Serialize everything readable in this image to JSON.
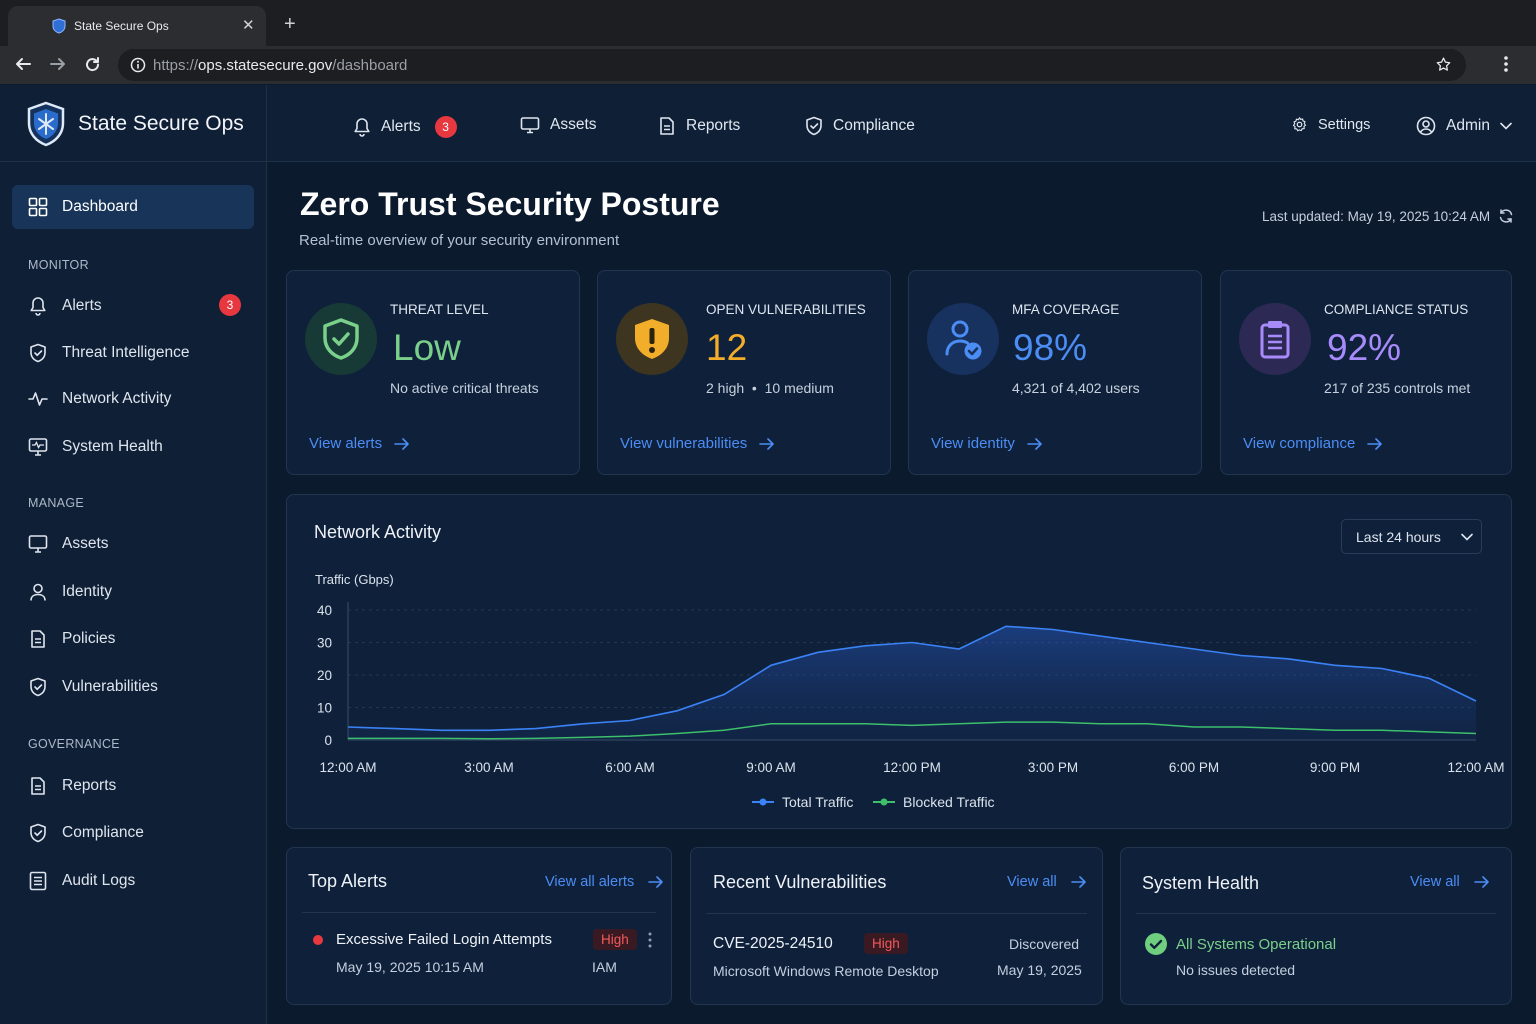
{
  "browser": {
    "tab_title": "State Secure Ops",
    "url_prefix": "https://",
    "url_host": "ops.statesecure.gov",
    "url_path": "/dashboard"
  },
  "app": {
    "name": "State Secure Ops",
    "nav": [
      {
        "label": "Alerts",
        "icon": "bell-icon",
        "badge": "3"
      },
      {
        "label": "Assets",
        "icon": "monitor-icon"
      },
      {
        "label": "Reports",
        "icon": "document-icon"
      },
      {
        "label": "Compliance",
        "icon": "shield-check-icon"
      }
    ],
    "settings_label": "Settings",
    "user_label": "Admin"
  },
  "sidebar": {
    "dashboard_label": "Dashboard",
    "sections": [
      {
        "title": "MONITOR",
        "items": [
          {
            "label": "Alerts",
            "icon": "bell-icon",
            "badge": "3"
          },
          {
            "label": "Threat Intelligence",
            "icon": "shield-check-icon"
          },
          {
            "label": "Network Activity",
            "icon": "activity-icon"
          },
          {
            "label": "System Health",
            "icon": "monitor-pulse-icon"
          }
        ]
      },
      {
        "title": "MANAGE",
        "items": [
          {
            "label": "Assets",
            "icon": "monitor-icon"
          },
          {
            "label": "Identity",
            "icon": "user-icon"
          },
          {
            "label": "Policies",
            "icon": "document-icon"
          },
          {
            "label": "Vulnerabilities",
            "icon": "shield-check-icon"
          }
        ]
      },
      {
        "title": "GOVERNANCE",
        "items": [
          {
            "label": "Reports",
            "icon": "document-icon"
          },
          {
            "label": "Compliance",
            "icon": "shield-check-icon"
          },
          {
            "label": "Audit Logs",
            "icon": "list-icon"
          }
        ]
      }
    ]
  },
  "page": {
    "title": "Zero Trust Security Posture",
    "subtitle": "Real-time overview of your security environment",
    "last_updated": "Last updated: May 19, 2025 10:24 AM"
  },
  "cards": [
    {
      "label": "THREAT LEVEL",
      "value": "Low",
      "sub": "No active critical threats",
      "link": "View alerts",
      "color": "#7ad08a"
    },
    {
      "label": "OPEN VULNERABILITIES",
      "value": "12",
      "sub": "2 high  •  10 medium",
      "link": "View vulnerabilities",
      "color": "#f2ad2a"
    },
    {
      "label": "MFA COVERAGE",
      "value": "98%",
      "sub": "4,321 of 4,402 users",
      "link": "View identity",
      "color": "#4c8df5"
    },
    {
      "label": "COMPLIANCE STATUS",
      "value": "92%",
      "sub": "217 of 235 controls met",
      "link": "View compliance",
      "color": "#a78bfa"
    }
  ],
  "network": {
    "title": "Network Activity",
    "range": "Last 24 hours"
  },
  "chart_data": {
    "type": "line",
    "ylabel": "Traffic (Gbps)",
    "ylim": [
      0,
      40
    ],
    "yticks": [
      "40",
      "30",
      "20",
      "10",
      "0"
    ],
    "xticks": [
      "12:00 AM",
      "3:00 AM",
      "6:00 AM",
      "9:00 AM",
      "12:00 PM",
      "3:00 PM",
      "6:00 PM",
      "9:00 PM",
      "12:00 AM"
    ],
    "x_hours": [
      0,
      1,
      2,
      3,
      4,
      5,
      6,
      7,
      8,
      9,
      10,
      11,
      12,
      13,
      14,
      15,
      16,
      17,
      18,
      19,
      20,
      21,
      22,
      23,
      24
    ],
    "series": [
      {
        "name": "Total Traffic",
        "color": "#3b82f6",
        "values": [
          4,
          3.5,
          3,
          3,
          3.5,
          5,
          6,
          9,
          14,
          23,
          27,
          29,
          30,
          28,
          35,
          34,
          32,
          30,
          28,
          26,
          25,
          23,
          22,
          19,
          12
        ]
      },
      {
        "name": "Blocked Traffic",
        "color": "#3dbf6b",
        "values": [
          0.5,
          0.5,
          0.5,
          0.4,
          0.5,
          0.8,
          1.2,
          2,
          3,
          5,
          5,
          5,
          4.5,
          5,
          5.5,
          5.5,
          5,
          5,
          4,
          4,
          3.5,
          3,
          3,
          2.5,
          2
        ]
      }
    ]
  },
  "alerts_panel": {
    "title": "Top Alerts",
    "link": "View all alerts",
    "item": {
      "title": "Excessive Failed Login Attempts",
      "time": "May 19, 2025 10:15 AM",
      "severity": "High",
      "category": "IAM"
    }
  },
  "vulns_panel": {
    "title": "Recent Vulnerabilities",
    "link": "View all",
    "item": {
      "id": "CVE-2025-24510",
      "severity": "High",
      "product": "Microsoft Windows Remote Desktop",
      "status": "Discovered",
      "date": "May 19, 2025"
    }
  },
  "health_panel": {
    "title": "System Health",
    "link": "View all",
    "status": "All Systems Operational",
    "detail": "No issues detected"
  }
}
